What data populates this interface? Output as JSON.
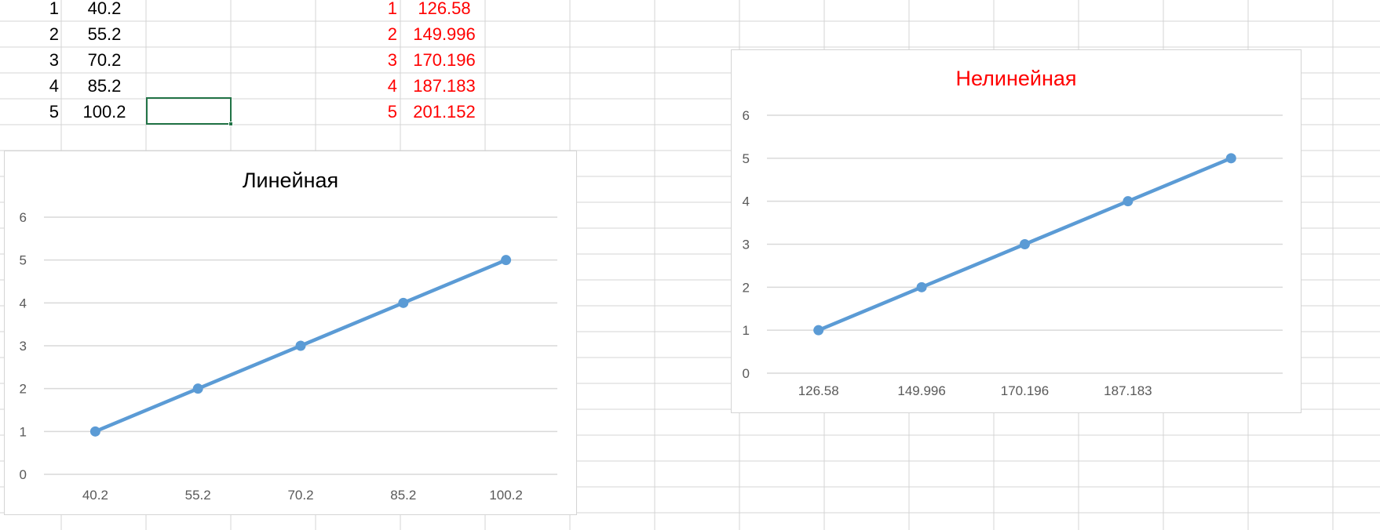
{
  "table_left": {
    "rows": [
      {
        "n": "1",
        "v": "40.2"
      },
      {
        "n": "2",
        "v": "55.2"
      },
      {
        "n": "3",
        "v": "70.2"
      },
      {
        "n": "4",
        "v": "85.2"
      },
      {
        "n": "5",
        "v": "100.2"
      }
    ]
  },
  "table_right": {
    "rows": [
      {
        "n": "1",
        "v": "126.58"
      },
      {
        "n": "2",
        "v": "149.996"
      },
      {
        "n": "3",
        "v": "170.196"
      },
      {
        "n": "4",
        "v": "187.183"
      },
      {
        "n": "5",
        "v": "201.152"
      }
    ]
  },
  "colors": {
    "series": "#5b9bd5",
    "red_text": "#ff0000",
    "selected_cell": "#217346",
    "gridline": "#d9d9d9",
    "cell_border": "#d4d4d4"
  },
  "chart_data": [
    {
      "type": "line",
      "title": "Линейная",
      "categories": [
        "40.2",
        "55.2",
        "70.2",
        "85.2",
        "100.2"
      ],
      "series": [
        {
          "values": [
            1,
            2,
            3,
            4,
            5
          ]
        }
      ],
      "yticks": [
        "0",
        "1",
        "2",
        "3",
        "4",
        "5",
        "6"
      ],
      "ylim": [
        0,
        6
      ],
      "grid": true,
      "legend": "none"
    },
    {
      "type": "line",
      "title": "Нелинейная",
      "title_color": "#ff0000",
      "categories": [
        "126.58",
        "149.996",
        "170.196",
        "187.183",
        ""
      ],
      "series": [
        {
          "values": [
            1,
            2,
            3,
            4,
            5
          ]
        }
      ],
      "yticks": [
        "0",
        "1",
        "2",
        "3",
        "4",
        "5",
        "6"
      ],
      "ylim": [
        0,
        6
      ],
      "grid": true,
      "legend": "none"
    }
  ]
}
